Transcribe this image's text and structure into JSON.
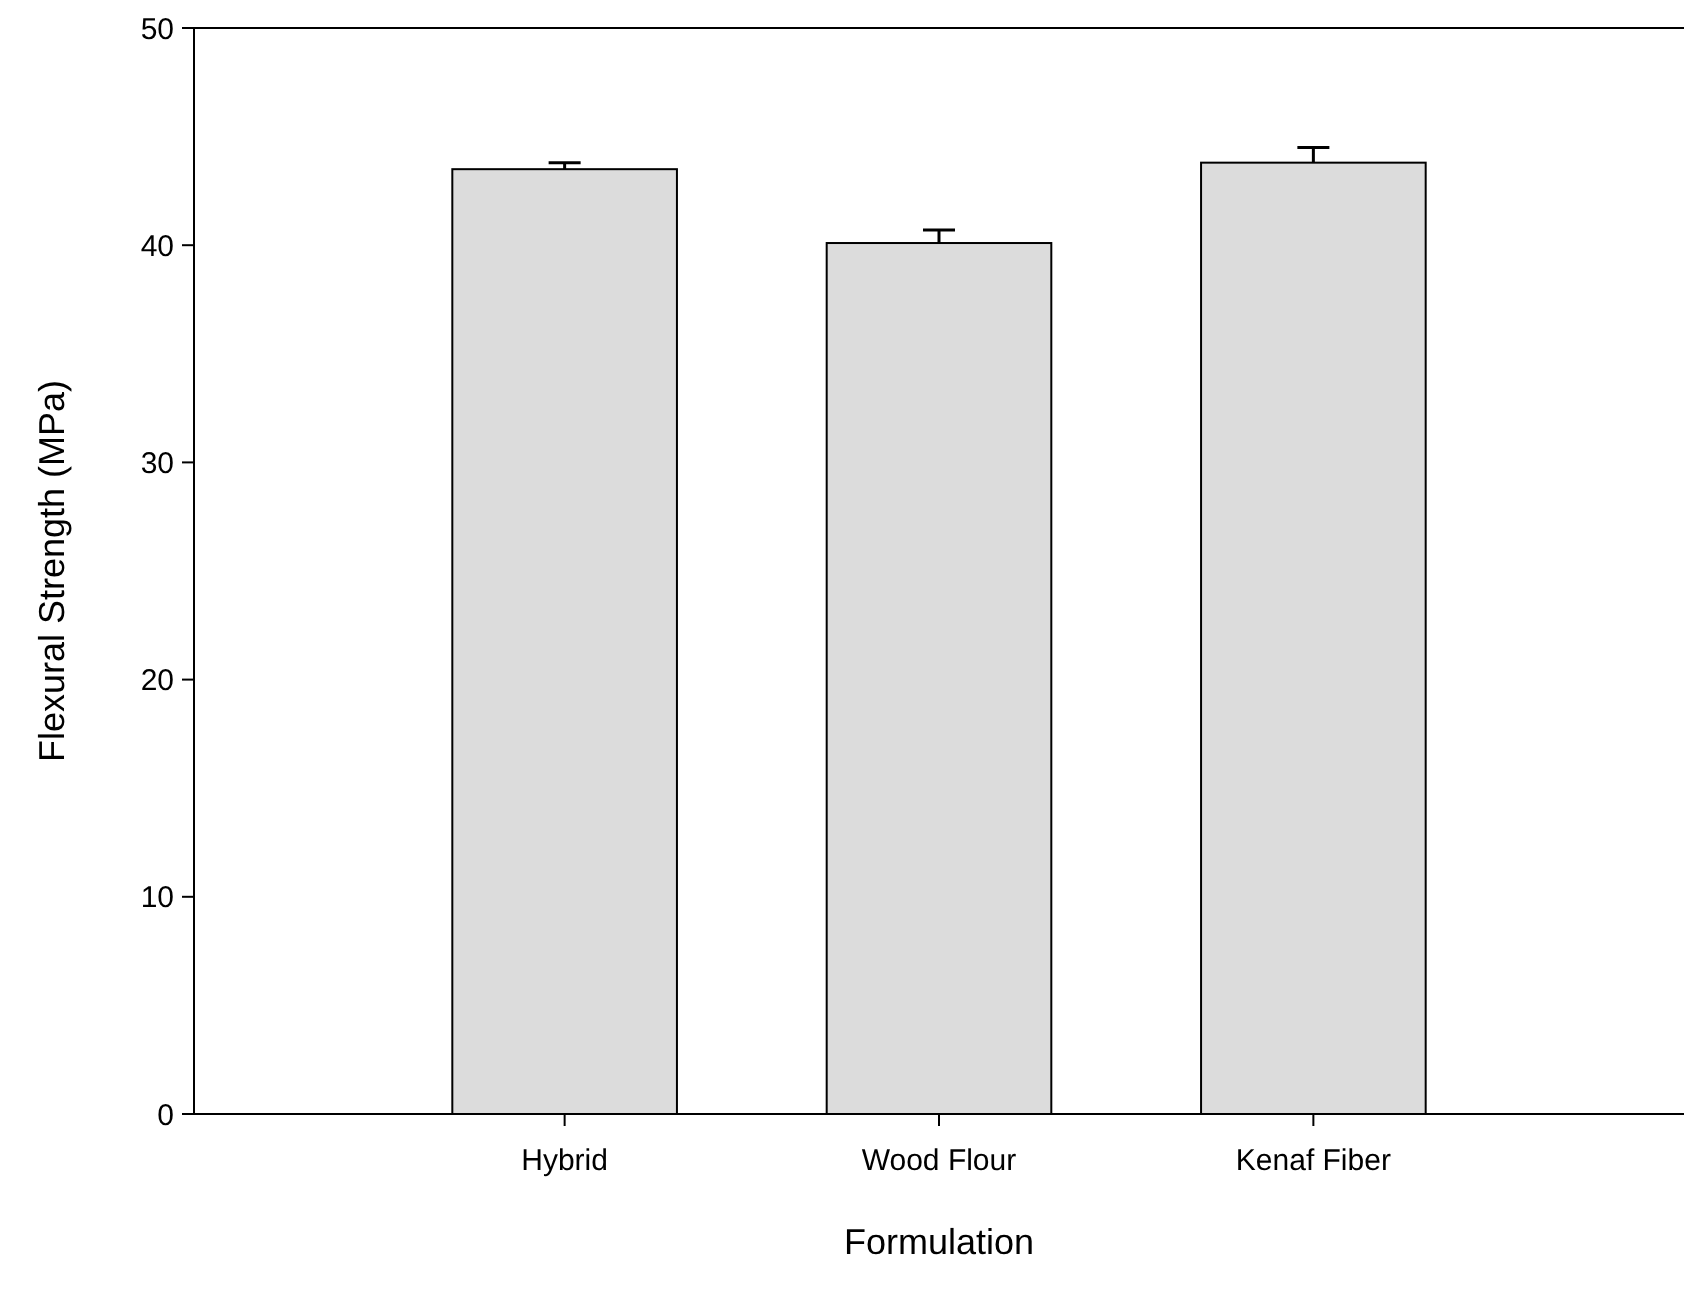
{
  "chart_data": {
    "type": "bar",
    "xlabel": "Formulation",
    "ylabel": "Flexural Strength (MPa)",
    "categories": [
      "Hybrid",
      "Wood Flour",
      "Kenaf Fiber"
    ],
    "values": [
      43.5,
      40.1,
      43.8
    ],
    "errors": [
      0.3,
      0.6,
      0.7
    ],
    "color": "#dcdcdc",
    "ylim": [
      0,
      50
    ],
    "yticks": [
      0,
      10,
      20,
      30,
      40,
      50
    ],
    "grid": false
  }
}
